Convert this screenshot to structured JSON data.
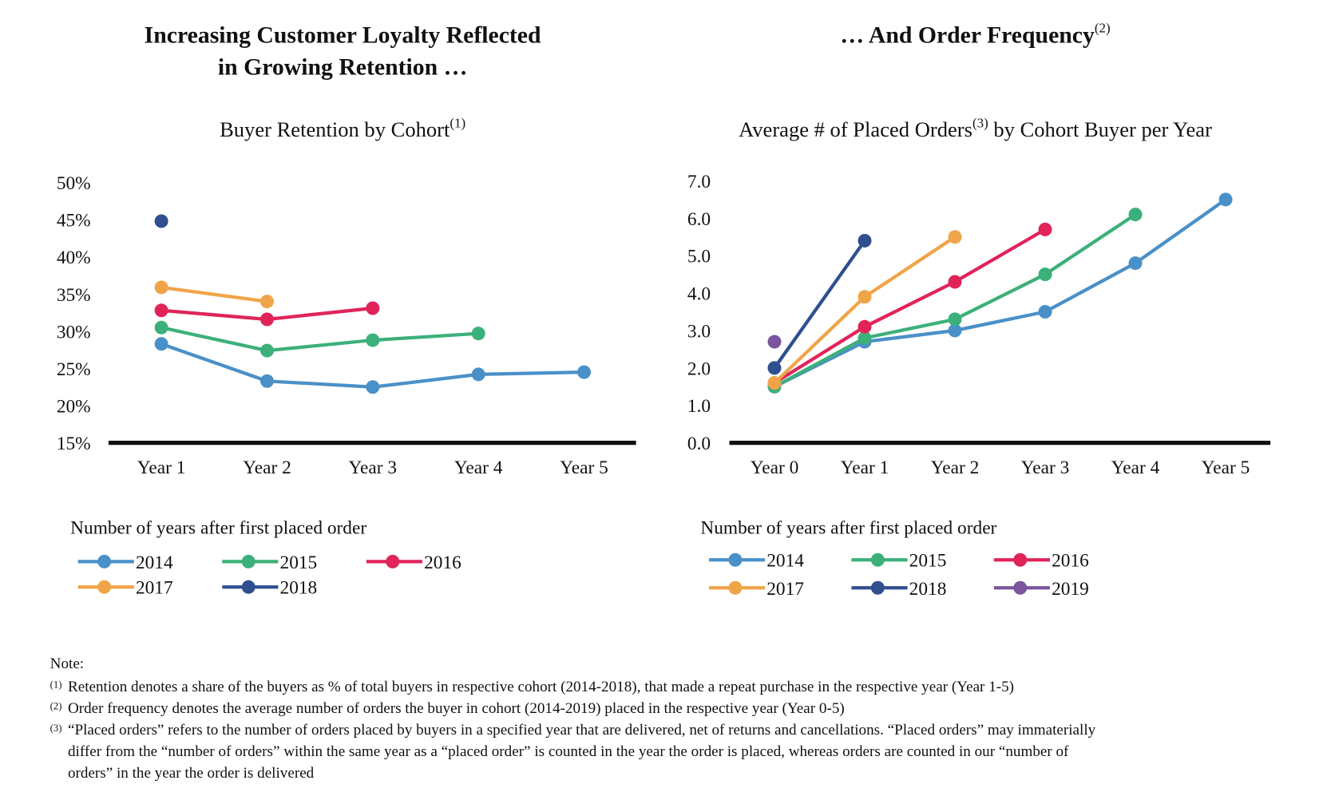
{
  "chart_data": [
    {
      "type": "line",
      "title_lines": [
        "Increasing Customer Loyalty Reflected",
        "in Growing Retention …"
      ],
      "subtitle_parts": [
        {
          "text": "Buyer Retention by Cohort"
        },
        {
          "sup": "(1)"
        }
      ],
      "x_label": "Number of years after first placed order",
      "categories": [
        "Year 1",
        "Year 2",
        "Year 3",
        "Year 4",
        "Year 5"
      ],
      "ylim": [
        15,
        50
      ],
      "yticks": [
        {
          "value": 15,
          "label": "15%"
        },
        {
          "value": 20,
          "label": "20%"
        },
        {
          "value": 25,
          "label": "25%"
        },
        {
          "value": 30,
          "label": "30%"
        },
        {
          "value": 35,
          "label": "35%"
        },
        {
          "value": 40,
          "label": "40%"
        },
        {
          "value": 45,
          "label": "45%"
        },
        {
          "value": 50,
          "label": "50%"
        }
      ],
      "series": [
        {
          "name": "2014",
          "color": "#4a90c8",
          "values": [
            28.3,
            23.3,
            22.5,
            24.2,
            24.5
          ]
        },
        {
          "name": "2015",
          "color": "#3cb07a",
          "values": [
            30.5,
            27.4,
            28.8,
            29.7,
            null
          ]
        },
        {
          "name": "2016",
          "color": "#e0245a",
          "values": [
            32.8,
            31.6,
            33.1,
            null,
            null
          ]
        },
        {
          "name": "2017",
          "color": "#f0a448",
          "values": [
            35.9,
            34.0,
            null,
            null,
            null
          ]
        },
        {
          "name": "2018",
          "color": "#2f4f8f",
          "values": [
            44.8,
            null,
            null,
            null,
            null
          ]
        }
      ]
    },
    {
      "type": "line",
      "title_lines": [
        "… And Order Frequency"
      ],
      "title_sup": "(2)",
      "subtitle_parts": [
        {
          "text": "Average # of Placed Orders"
        },
        {
          "sup": "(3)"
        },
        {
          "text": " by Cohort Buyer per Year"
        }
      ],
      "x_label": "Number of years after first placed order",
      "categories": [
        "Year 0",
        "Year 1",
        "Year 2",
        "Year 3",
        "Year 4",
        "Year 5"
      ],
      "ylim": [
        0,
        7
      ],
      "yticks": [
        {
          "value": 0,
          "label": "0.0"
        },
        {
          "value": 1,
          "label": "1.0"
        },
        {
          "value": 2,
          "label": "2.0"
        },
        {
          "value": 3,
          "label": "3.0"
        },
        {
          "value": 4,
          "label": "4.0"
        },
        {
          "value": 5,
          "label": "5.0"
        },
        {
          "value": 6,
          "label": "6.0"
        },
        {
          "value": 7,
          "label": "7.0"
        }
      ],
      "series": [
        {
          "name": "2014",
          "color": "#4a90c8",
          "values": [
            1.5,
            2.7,
            3.0,
            3.5,
            4.8,
            6.5
          ]
        },
        {
          "name": "2015",
          "color": "#3cb07a",
          "values": [
            1.5,
            2.8,
            3.3,
            4.5,
            6.1,
            null
          ]
        },
        {
          "name": "2016",
          "color": "#e0245a",
          "values": [
            1.6,
            3.1,
            4.3,
            5.7,
            null,
            null
          ]
        },
        {
          "name": "2017",
          "color": "#f0a448",
          "values": [
            1.6,
            3.9,
            5.5,
            null,
            null,
            null
          ]
        },
        {
          "name": "2018",
          "color": "#2f4f8f",
          "values": [
            2.0,
            5.4,
            null,
            null,
            null,
            null
          ]
        },
        {
          "name": "2019",
          "color": "#7b559e",
          "values": [
            2.7,
            null,
            null,
            null,
            null,
            null
          ]
        }
      ]
    }
  ],
  "notes": {
    "heading": "Note:",
    "items": [
      {
        "marker": "(1)",
        "lines": [
          "Retention denotes a share of the buyers as % of total buyers in respective cohort (2014-2018), that made a repeat purchase in the respective year (Year 1-5)"
        ]
      },
      {
        "marker": "(2)",
        "lines": [
          "Order frequency denotes the average number of orders the buyer in cohort (2014-2019) placed in the respective year (Year 0-5)"
        ]
      },
      {
        "marker": "(3)",
        "lines": [
          "“Placed orders” refers to the number of orders placed by buyers in a specified year that are delivered, net of returns and cancellations. “Placed orders” may immaterially",
          "differ from the “number of orders” within the same year as a “placed order” is counted in the year the order is placed, whereas orders are counted in our “number of",
          "orders” in the year the order is delivered"
        ]
      }
    ]
  }
}
